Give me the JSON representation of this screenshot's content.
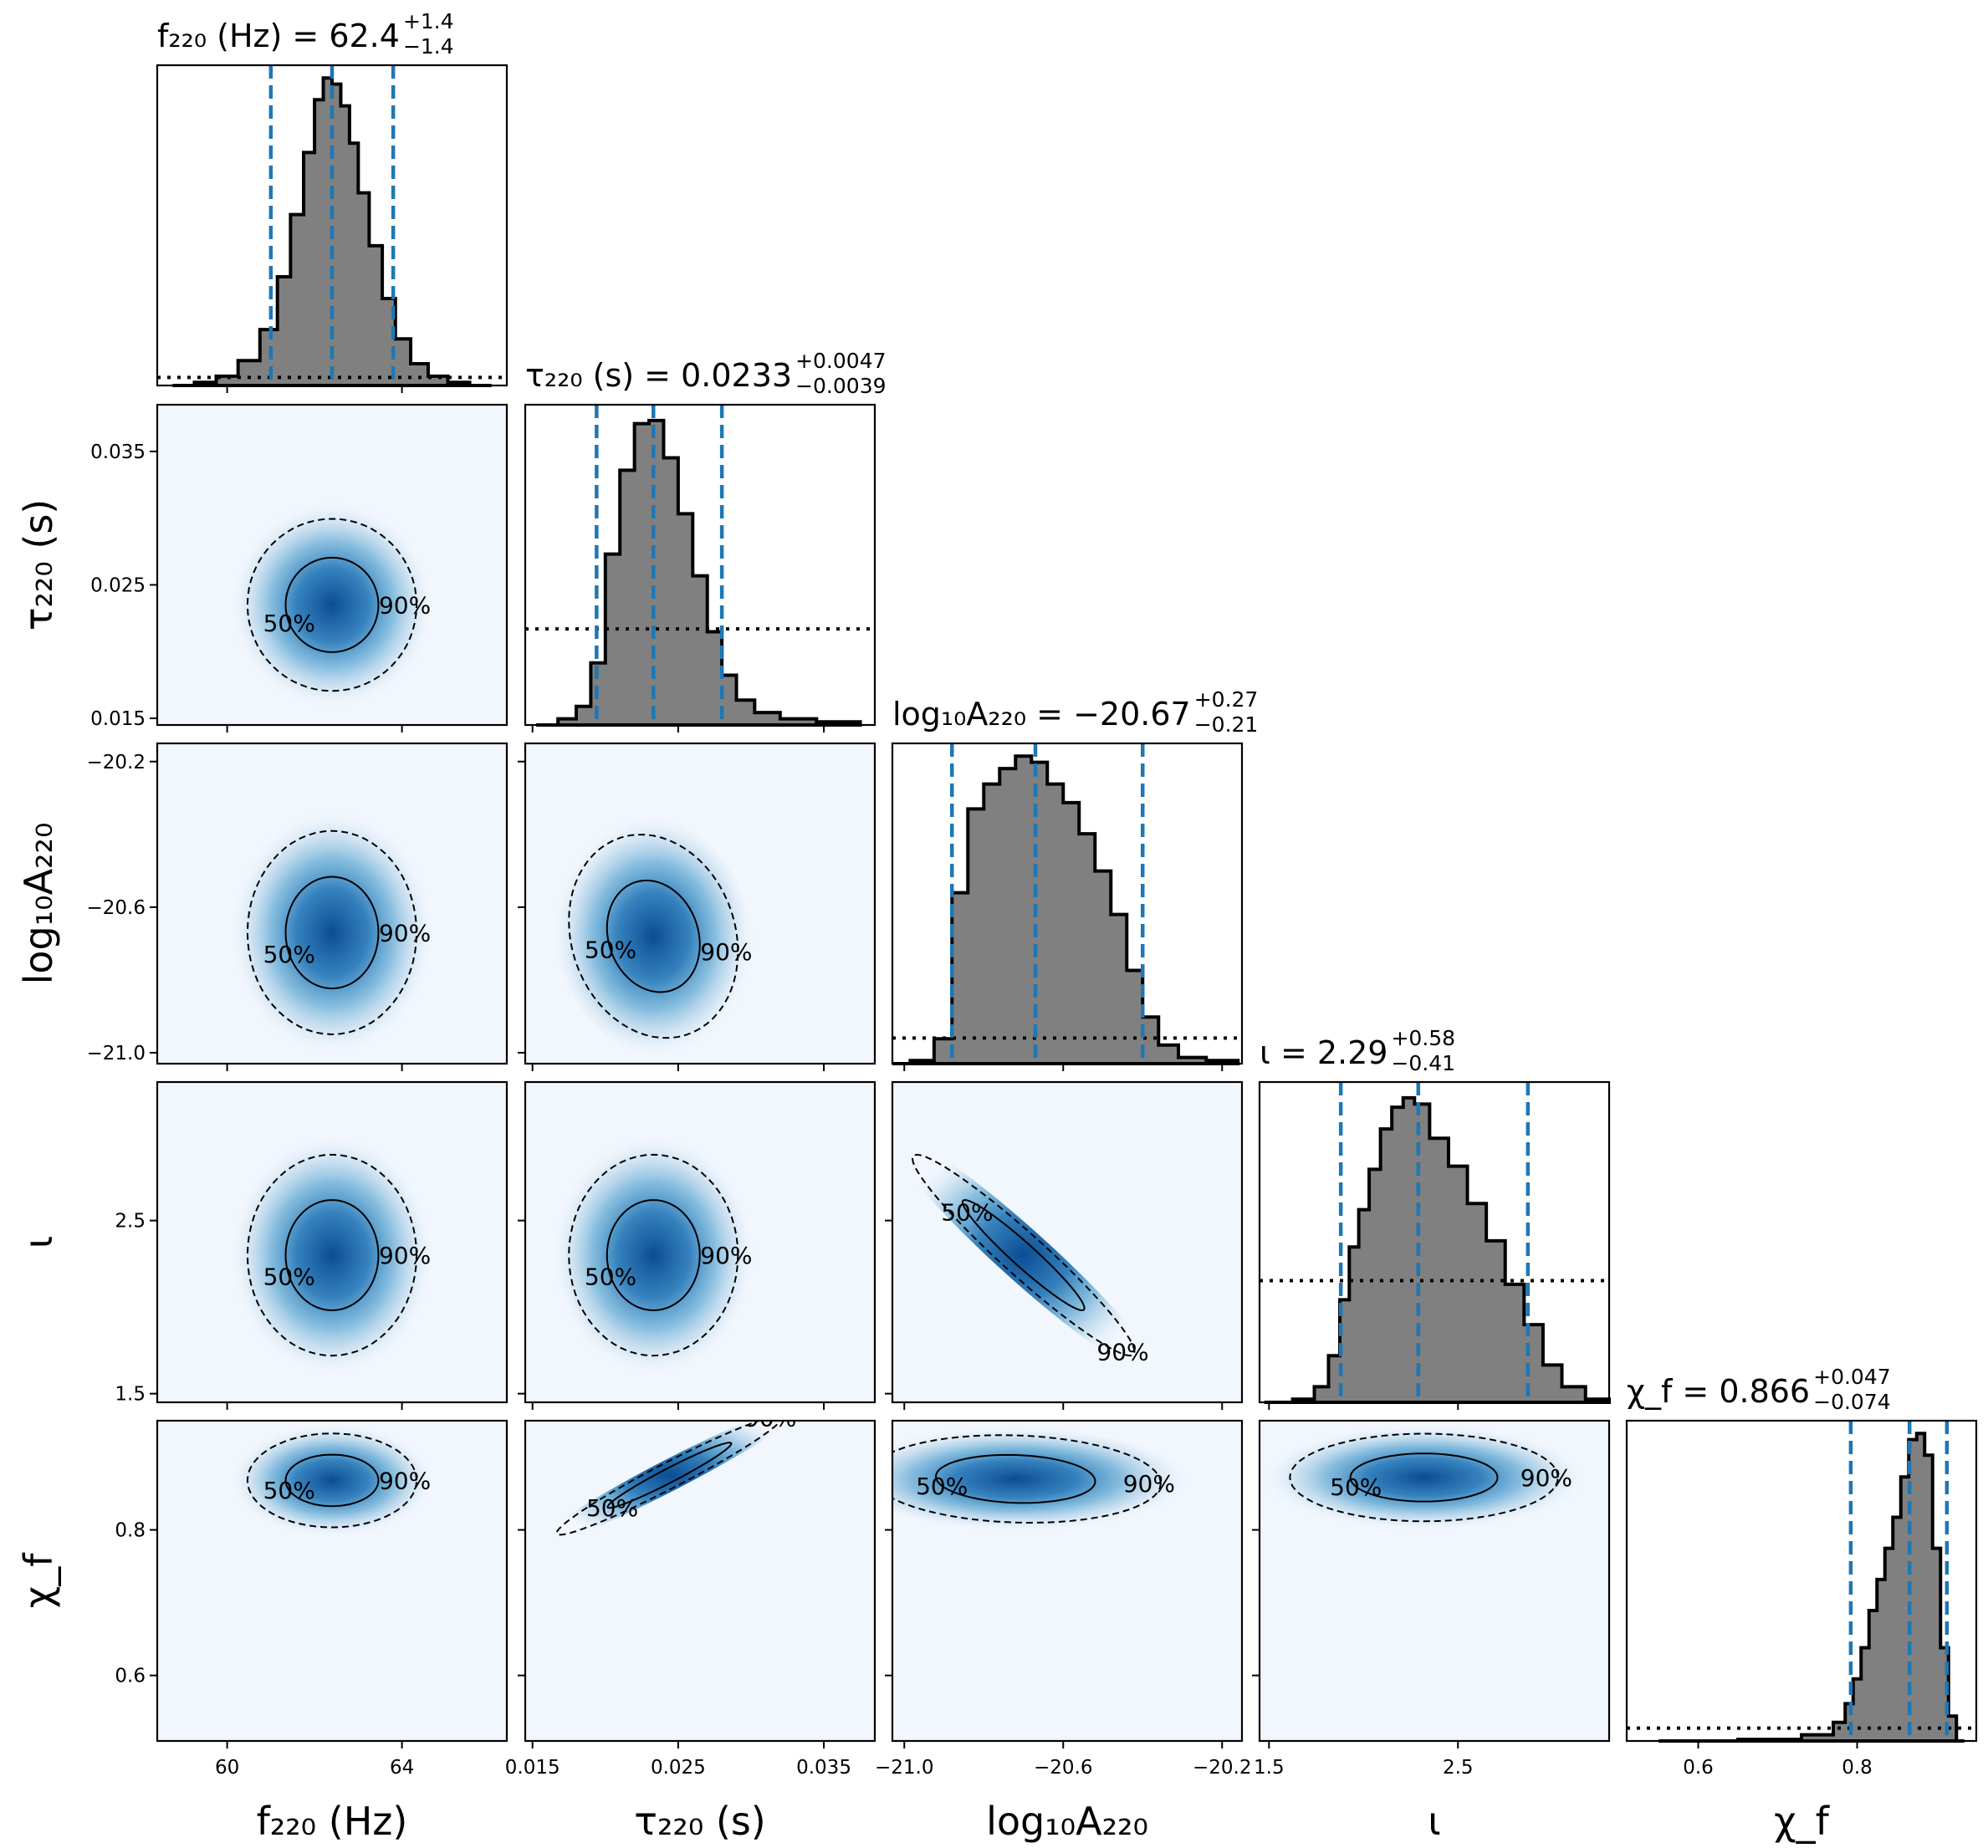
{
  "chart_data": {
    "type": "corner",
    "parameters": [
      {
        "key": "f220",
        "axis_label": "f₂₂₀ (Hz)",
        "ylabel": "",
        "title": {
          "text": "f₂₂₀ (Hz) = 62.4",
          "plus": "+1.4",
          "minus": "−1.4"
        },
        "range": [
          58.4,
          66.4
        ],
        "ticks": [
          60,
          64
        ],
        "tick_labels": [
          "60",
          "64"
        ],
        "median": 62.4,
        "lower": 61.0,
        "upper": 63.8,
        "hist_x": [
          59.0,
          59.5,
          60.0,
          60.5,
          61.0,
          61.3,
          61.6,
          61.9,
          62.1,
          62.3,
          62.5,
          62.7,
          62.9,
          63.1,
          63.4,
          63.7,
          64.0,
          64.4,
          64.8,
          65.3,
          65.8
        ],
        "hist_y": [
          0.0,
          0.01,
          0.03,
          0.08,
          0.18,
          0.35,
          0.55,
          0.75,
          0.92,
          0.99,
          0.97,
          0.9,
          0.78,
          0.62,
          0.45,
          0.28,
          0.15,
          0.07,
          0.03,
          0.01,
          0.0
        ],
        "prior_y": 0.025
      },
      {
        "key": "tau220",
        "axis_label": "τ₂₂₀ (s)",
        "ylabel": "τ₂₂₀ (s)",
        "title": {
          "text": "τ₂₂₀ (s) = 0.0233",
          "plus": "+0.0047",
          "minus": "−0.0039"
        },
        "range": [
          0.0145,
          0.0385
        ],
        "ticks": [
          0.015,
          0.025,
          0.035
        ],
        "tick_labels": [
          "0.015",
          "0.025",
          "0.035"
        ],
        "median": 0.0233,
        "lower": 0.0194,
        "upper": 0.028,
        "hist_x": [
          0.016,
          0.0175,
          0.0185,
          0.0195,
          0.0205,
          0.0215,
          0.0225,
          0.0235,
          0.0245,
          0.0255,
          0.0265,
          0.0275,
          0.0285,
          0.0295,
          0.031,
          0.033,
          0.036
        ],
        "hist_y": [
          0.0,
          0.02,
          0.06,
          0.2,
          0.55,
          0.82,
          0.97,
          0.98,
          0.86,
          0.68,
          0.48,
          0.3,
          0.16,
          0.08,
          0.04,
          0.02,
          0.01
        ],
        "prior_y": 0.3
      },
      {
        "key": "logA",
        "axis_label": "log₁₀A₂₂₀",
        "ylabel": "log₁₀A₂₂₀",
        "title": {
          "text": "log₁₀A₂₂₀ = −20.67",
          "plus": "+0.27",
          "minus": "−0.21"
        },
        "range": [
          -21.03,
          -20.15
        ],
        "ticks": [
          -21.0,
          -20.6,
          -20.2
        ],
        "tick_labels": [
          "−21.0",
          "−20.6",
          "−20.2"
        ],
        "median": -20.67,
        "lower": -20.88,
        "upper": -20.4,
        "hist_x": [
          -21.02,
          -20.95,
          -20.9,
          -20.86,
          -20.82,
          -20.78,
          -20.74,
          -20.7,
          -20.66,
          -20.62,
          -20.58,
          -20.54,
          -20.5,
          -20.46,
          -20.42,
          -20.38,
          -20.34,
          -20.28,
          -20.2
        ],
        "hist_y": [
          0.0,
          0.01,
          0.08,
          0.55,
          0.82,
          0.9,
          0.95,
          0.99,
          0.97,
          0.9,
          0.84,
          0.74,
          0.62,
          0.48,
          0.3,
          0.15,
          0.06,
          0.02,
          0.01
        ],
        "prior_y": 0.08
      },
      {
        "key": "iota",
        "axis_label": "ι",
        "ylabel": "ι",
        "title": {
          "text": "ι = 2.29",
          "plus": "+0.58",
          "minus": "−0.41"
        },
        "range": [
          1.45,
          3.3
        ],
        "ticks": [
          1.5,
          2.5
        ],
        "tick_labels": [
          "1.5",
          "2.5"
        ],
        "median": 2.29,
        "lower": 1.88,
        "upper": 2.87,
        "hist_x": [
          1.55,
          1.7,
          1.78,
          1.85,
          1.9,
          1.95,
          2.0,
          2.06,
          2.12,
          2.18,
          2.24,
          2.3,
          2.4,
          2.5,
          2.6,
          2.7,
          2.8,
          2.9,
          3.0,
          3.1,
          3.25
        ],
        "hist_y": [
          0.0,
          0.01,
          0.05,
          0.15,
          0.33,
          0.5,
          0.62,
          0.75,
          0.88,
          0.95,
          0.98,
          0.96,
          0.85,
          0.76,
          0.64,
          0.52,
          0.38,
          0.25,
          0.12,
          0.05,
          0.01
        ],
        "prior_y": 0.38
      },
      {
        "key": "chif",
        "axis_label": "χ_f",
        "ylabel": "χ_f",
        "title": {
          "text": "χ_f = 0.866",
          "plus": "+0.047",
          "minus": "−0.074"
        },
        "range": [
          0.51,
          0.95
        ],
        "ticks": [
          0.6,
          0.8
        ],
        "tick_labels": [
          "0.6",
          "0.8"
        ],
        "median": 0.866,
        "lower": 0.792,
        "upper": 0.913,
        "hist_x": [
          0.6,
          0.7,
          0.76,
          0.78,
          0.79,
          0.8,
          0.81,
          0.82,
          0.83,
          0.84,
          0.85,
          0.86,
          0.87,
          0.88,
          0.89,
          0.9,
          0.91,
          0.92,
          0.93
        ],
        "hist_y": [
          0.0,
          0.005,
          0.02,
          0.06,
          0.12,
          0.2,
          0.3,
          0.42,
          0.52,
          0.62,
          0.72,
          0.85,
          0.97,
          0.99,
          0.92,
          0.62,
          0.3,
          0.08,
          0.0
        ],
        "prior_y": 0.04
      }
    ],
    "contour_levels": [
      "50%",
      "90%"
    ],
    "pairs": [
      {
        "x": "f220",
        "y": "tau220",
        "center": [
          62.4,
          0.0235
        ],
        "sigma": [
          0.9,
          0.003
        ],
        "rho": 0.0
      },
      {
        "x": "f220",
        "y": "logA",
        "center": [
          62.4,
          -20.67
        ],
        "sigma": [
          0.9,
          0.13
        ],
        "rho": 0.0
      },
      {
        "x": "tau220",
        "y": "logA",
        "center": [
          0.0233,
          -20.68
        ],
        "sigma": [
          0.0027,
          0.13
        ],
        "rho": -0.15
      },
      {
        "x": "f220",
        "y": "iota",
        "center": [
          62.4,
          2.3
        ],
        "sigma": [
          0.9,
          0.27
        ],
        "rho": 0.0
      },
      {
        "x": "tau220",
        "y": "iota",
        "center": [
          0.0233,
          2.3
        ],
        "sigma": [
          0.0027,
          0.27
        ],
        "rho": 0.0
      },
      {
        "x": "logA",
        "y": "iota",
        "center": [
          -20.7,
          2.3
        ],
        "sigma": [
          0.13,
          0.27
        ],
        "rho": -0.96
      },
      {
        "x": "f220",
        "y": "chif",
        "center": [
          62.4,
          0.868
        ],
        "sigma": [
          0.9,
          0.03
        ],
        "rho": 0.0
      },
      {
        "x": "tau220",
        "y": "chif",
        "center": [
          0.0244,
          0.875
        ],
        "sigma": [
          0.0036,
          0.038
        ],
        "rho": 0.97
      },
      {
        "x": "logA",
        "y": "chif",
        "center": [
          -20.72,
          0.87
        ],
        "sigma": [
          0.17,
          0.028
        ],
        "rho": -0.1
      },
      {
        "x": "iota",
        "y": "chif",
        "center": [
          2.32,
          0.872
        ],
        "sigma": [
          0.33,
          0.028
        ],
        "rho": 0.0
      }
    ]
  }
}
